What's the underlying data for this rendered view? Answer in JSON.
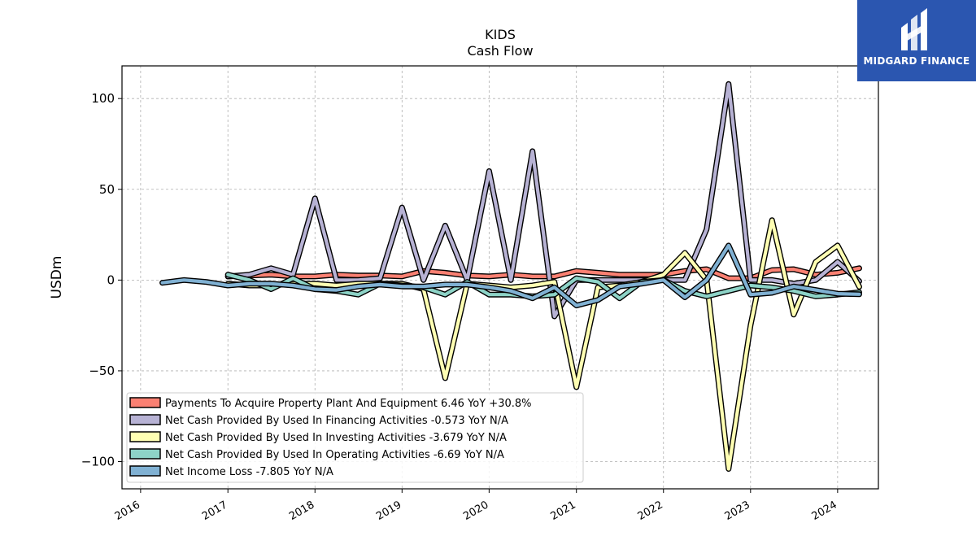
{
  "brand": {
    "name": "MIDGARD FINANCE",
    "bg_color": "#2b56b0"
  },
  "chart_data": {
    "type": "line",
    "title": "KIDS",
    "subtitle": "Cash Flow",
    "ylabel": "USDm",
    "xlabel": "",
    "xlim": [
      "2015-10-15",
      "2024-06-20"
    ],
    "ylim": [
      -115,
      118
    ],
    "yticks": [
      100,
      50,
      0,
      -50,
      -100
    ],
    "ytick_labels": [
      "100",
      "50",
      "0",
      "−50",
      "−100"
    ],
    "xticks": [
      "2016",
      "2017",
      "2018",
      "2019",
      "2020",
      "2021",
      "2022",
      "2023",
      "2024"
    ],
    "grid": true,
    "legend_position": "lower-left",
    "series": [
      {
        "name": "Payments To Acquire Property Plant And Equipment",
        "legend": "Payments To Acquire Property Plant And Equipment  6.46 YoY +30.8%",
        "color": "#fa8072",
        "points": [
          [
            "2017-01-01",
            2.0
          ],
          [
            "2017-04-01",
            2.5
          ],
          [
            "2017-07-01",
            3.0
          ],
          [
            "2017-10-01",
            2.0
          ],
          [
            "2018-01-01",
            2.0
          ],
          [
            "2018-04-01",
            3.0
          ],
          [
            "2018-07-01",
            2.5
          ],
          [
            "2018-10-01",
            2.5
          ],
          [
            "2019-01-01",
            2.0
          ],
          [
            "2019-04-01",
            5.0
          ],
          [
            "2019-07-01",
            4.0
          ],
          [
            "2019-10-01",
            2.5
          ],
          [
            "2020-01-01",
            2.0
          ],
          [
            "2020-04-01",
            3.0
          ],
          [
            "2020-07-01",
            2.0
          ],
          [
            "2020-10-01",
            2.0
          ],
          [
            "2021-01-01",
            5.0
          ],
          [
            "2021-04-01",
            4.0
          ],
          [
            "2021-07-01",
            3.0
          ],
          [
            "2021-10-01",
            3.0
          ],
          [
            "2022-01-01",
            3.0
          ],
          [
            "2022-04-01",
            5.0
          ],
          [
            "2022-07-01",
            6.0
          ],
          [
            "2022-10-01",
            1.0
          ],
          [
            "2023-01-01",
            1.0
          ],
          [
            "2023-04-01",
            5.5
          ],
          [
            "2023-07-01",
            6.0
          ],
          [
            "2023-10-01",
            3.0
          ],
          [
            "2024-01-01",
            4.0
          ],
          [
            "2024-04-01",
            6.5
          ]
        ]
      },
      {
        "name": "Net Cash Provided By Used In Financing Activities",
        "legend": "Net Cash Provided By Used In Financing Activities  -0.573 YoY N/A",
        "color": "#b7b2d4",
        "points": [
          [
            "2017-01-01",
            2.0
          ],
          [
            "2017-04-01",
            3.0
          ],
          [
            "2017-07-01",
            6.5
          ],
          [
            "2017-10-01",
            3.0
          ],
          [
            "2018-01-01",
            45.0
          ],
          [
            "2018-04-01",
            0.0
          ],
          [
            "2018-07-01",
            0.0
          ],
          [
            "2018-10-01",
            1.0
          ],
          [
            "2019-01-01",
            40.0
          ],
          [
            "2019-04-01",
            0.0
          ],
          [
            "2019-07-01",
            30.0
          ],
          [
            "2019-10-01",
            0.0
          ],
          [
            "2020-01-01",
            60.0
          ],
          [
            "2020-04-01",
            0.0
          ],
          [
            "2020-07-01",
            71.0
          ],
          [
            "2020-10-01",
            -20.0
          ],
          [
            "2021-01-01",
            0.0
          ],
          [
            "2021-04-01",
            0.0
          ],
          [
            "2021-07-01",
            0.0
          ],
          [
            "2021-10-01",
            0.0
          ],
          [
            "2022-01-01",
            0.0
          ],
          [
            "2022-04-01",
            0.0
          ],
          [
            "2022-07-01",
            28.0
          ],
          [
            "2022-10-01",
            108.0
          ],
          [
            "2023-01-01",
            0.0
          ],
          [
            "2023-04-01",
            0.0
          ],
          [
            "2023-07-01",
            -2.0
          ],
          [
            "2023-10-01",
            0.0
          ],
          [
            "2024-01-01",
            10.0
          ],
          [
            "2024-04-01",
            -0.6
          ]
        ]
      },
      {
        "name": "Net Cash Provided By Used In Investing Activities",
        "legend": "Net Cash Provided By Used In Investing Activities  -3.679 YoY N/A",
        "color": "#ffffb3",
        "points": [
          [
            "2017-01-01",
            -2.0
          ],
          [
            "2017-04-01",
            -3.0
          ],
          [
            "2017-07-01",
            -3.0
          ],
          [
            "2017-10-01",
            -2.0
          ],
          [
            "2018-01-01",
            -2.0
          ],
          [
            "2018-04-01",
            -3.0
          ],
          [
            "2018-07-01",
            -2.0
          ],
          [
            "2018-10-01",
            -2.0
          ],
          [
            "2019-01-01",
            -2.0
          ],
          [
            "2019-04-01",
            -5.0
          ],
          [
            "2019-07-01",
            -54.0
          ],
          [
            "2019-10-01",
            -2.0
          ],
          [
            "2020-01-01",
            -3.0
          ],
          [
            "2020-04-01",
            -4.0
          ],
          [
            "2020-07-01",
            -3.0
          ],
          [
            "2020-10-01",
            -1.0
          ],
          [
            "2021-01-01",
            -59.0
          ],
          [
            "2021-04-01",
            -4.0
          ],
          [
            "2021-07-01",
            -3.0
          ],
          [
            "2021-10-01",
            -1.0
          ],
          [
            "2022-01-01",
            3.0
          ],
          [
            "2022-04-01",
            15.0
          ],
          [
            "2022-07-01",
            0.0
          ],
          [
            "2022-10-01",
            -104.0
          ],
          [
            "2023-01-01",
            -25.0
          ],
          [
            "2023-04-01",
            33.0
          ],
          [
            "2023-07-01",
            -19.0
          ],
          [
            "2023-10-01",
            10.0
          ],
          [
            "2024-01-01",
            19.0
          ],
          [
            "2024-04-01",
            -3.7
          ]
        ]
      },
      {
        "name": "Net Cash Provided By Used In Operating Activities",
        "legend": "Net Cash Provided By Used In Operating Activities  -6.69 YoY N/A",
        "color": "#8dd3c7",
        "points": [
          [
            "2017-01-01",
            3.0
          ],
          [
            "2017-04-01",
            0.0
          ],
          [
            "2017-07-01",
            -5.0
          ],
          [
            "2017-10-01",
            1.0
          ],
          [
            "2018-01-01",
            -5.0
          ],
          [
            "2018-04-01",
            -6.0
          ],
          [
            "2018-07-01",
            -8.0
          ],
          [
            "2018-10-01",
            -2.0
          ],
          [
            "2019-01-01",
            -3.0
          ],
          [
            "2019-04-01",
            -4.0
          ],
          [
            "2019-07-01",
            -8.0
          ],
          [
            "2019-10-01",
            -1.0
          ],
          [
            "2020-01-01",
            -8.0
          ],
          [
            "2020-04-01",
            -8.0
          ],
          [
            "2020-07-01",
            -9.0
          ],
          [
            "2020-10-01",
            -8.0
          ],
          [
            "2021-01-01",
            1.0
          ],
          [
            "2021-04-01",
            -1.0
          ],
          [
            "2021-07-01",
            -10.0
          ],
          [
            "2021-10-01",
            -1.0
          ],
          [
            "2022-01-01",
            0.0
          ],
          [
            "2022-04-01",
            -6.0
          ],
          [
            "2022-07-01",
            -9.0
          ],
          [
            "2022-10-01",
            -6.0
          ],
          [
            "2023-01-01",
            -3.0
          ],
          [
            "2023-04-01",
            -4.0
          ],
          [
            "2023-07-01",
            -6.0
          ],
          [
            "2023-10-01",
            -9.0
          ],
          [
            "2024-01-01",
            -8.0
          ],
          [
            "2024-04-01",
            -6.7
          ]
        ]
      },
      {
        "name": "Net Income Loss",
        "legend": "Net Income Loss  -7.805 YoY N/A",
        "color": "#80b1d3",
        "points": [
          [
            "2016-04-01",
            -1.5
          ],
          [
            "2016-07-01",
            0.0
          ],
          [
            "2016-10-01",
            -1.0
          ],
          [
            "2017-01-01",
            -3.0
          ],
          [
            "2017-04-01",
            -2.0
          ],
          [
            "2017-07-01",
            -2.0
          ],
          [
            "2017-10-01",
            -3.0
          ],
          [
            "2018-01-01",
            -5.0
          ],
          [
            "2018-04-01",
            -5.5
          ],
          [
            "2018-07-01",
            -3.5
          ],
          [
            "2018-10-01",
            -2.5
          ],
          [
            "2019-01-01",
            -3.5
          ],
          [
            "2019-04-01",
            -3.5
          ],
          [
            "2019-07-01",
            -2.5
          ],
          [
            "2019-10-01",
            -2.5
          ],
          [
            "2020-01-01",
            -4.0
          ],
          [
            "2020-04-01",
            -6.0
          ],
          [
            "2020-07-01",
            -10.0
          ],
          [
            "2020-10-01",
            -4.0
          ],
          [
            "2021-01-01",
            -14.0
          ],
          [
            "2021-04-01",
            -11.0
          ],
          [
            "2021-07-01",
            -3.5
          ],
          [
            "2021-10-01",
            -2.0
          ],
          [
            "2022-01-01",
            0.0
          ],
          [
            "2022-04-01",
            -9.5
          ],
          [
            "2022-07-01",
            0.0
          ],
          [
            "2022-10-01",
            19.0
          ],
          [
            "2023-01-01",
            -8.0
          ],
          [
            "2023-04-01",
            -7.0
          ],
          [
            "2023-07-01",
            -3.5
          ],
          [
            "2023-10-01",
            -5.5
          ],
          [
            "2024-01-01",
            -7.5
          ],
          [
            "2024-04-01",
            -7.8
          ]
        ]
      }
    ]
  }
}
